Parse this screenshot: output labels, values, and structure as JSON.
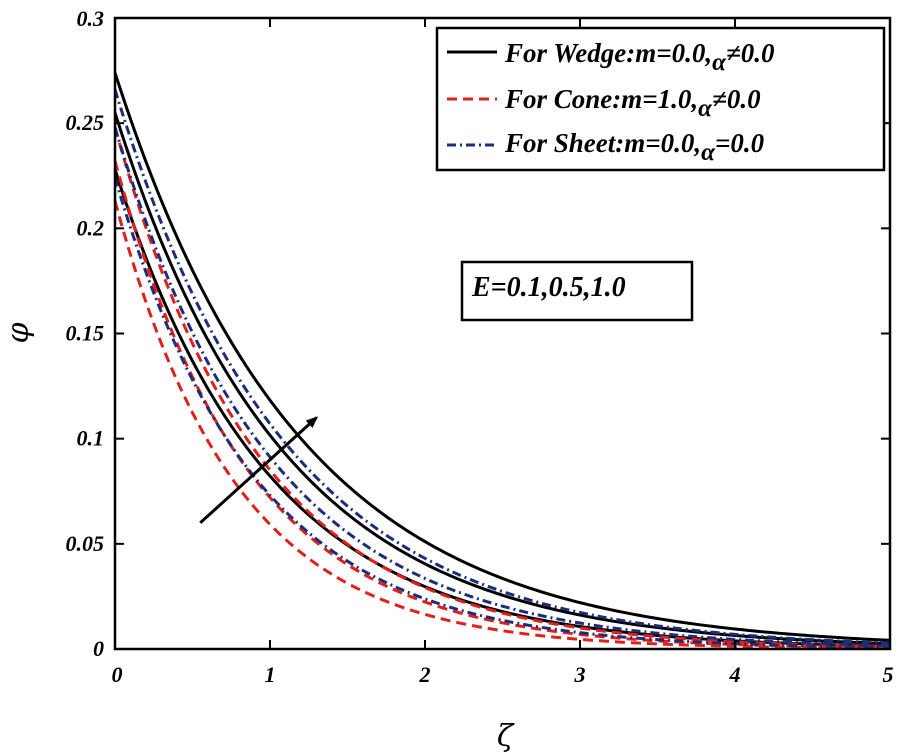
{
  "chart_data": {
    "type": "line",
    "xlabel": "ζ",
    "ylabel": "φ",
    "xlim": [
      0,
      5
    ],
    "ylim": [
      0,
      0.3
    ],
    "xticks": [
      "0",
      "1",
      "2",
      "3",
      "4",
      "5"
    ],
    "yticks": [
      "0",
      "0.05",
      "0.1",
      "0.15",
      "0.2",
      "0.25",
      "0.3"
    ],
    "legend": [
      {
        "prefix": "For Wedge:m=0.0,",
        "greek": "α",
        "suffix": "≠0.0",
        "color": "#000000",
        "dash": "solid"
      },
      {
        "prefix": "For Cone:m=1.0,",
        "greek": "α",
        "suffix": "≠0.0",
        "color": "#e0201c",
        "dash": "dashed"
      },
      {
        "prefix": "For Sheet:m=0.0,",
        "greek": "α",
        "suffix": "=0.0",
        "color": "#1c2e7a",
        "dash": "dashdot"
      }
    ],
    "annotation": "E=0.1,0.5,1.0",
    "series": [
      {
        "name": "Wedge E=0.1",
        "group": "wedge",
        "phi0": 0.228,
        "decay": 1.02
      },
      {
        "name": "Wedge E=0.5",
        "group": "wedge",
        "phi0": 0.255,
        "decay": 0.92
      },
      {
        "name": "Wedge E=1.0",
        "group": "wedge",
        "phi0": 0.274,
        "decay": 0.84
      },
      {
        "name": "Cone E=0.1",
        "group": "cone",
        "phi0": 0.213,
        "decay": 1.28
      },
      {
        "name": "Cone E=0.5",
        "group": "cone",
        "phi0": 0.232,
        "decay": 1.17
      },
      {
        "name": "Cone E=1.0",
        "group": "cone",
        "phi0": 0.248,
        "decay": 1.07
      },
      {
        "name": "Sheet E=0.1",
        "group": "sheet",
        "phi0": 0.224,
        "decay": 1.12
      },
      {
        "name": "Sheet E=0.5",
        "group": "sheet",
        "phi0": 0.248,
        "decay": 1.0
      },
      {
        "name": "Sheet E=1.0",
        "group": "sheet",
        "phi0": 0.266,
        "decay": 0.91
      }
    ],
    "arrow": {
      "from": [
        0.55,
        0.06
      ],
      "to": [
        1.3,
        0.11
      ]
    }
  }
}
